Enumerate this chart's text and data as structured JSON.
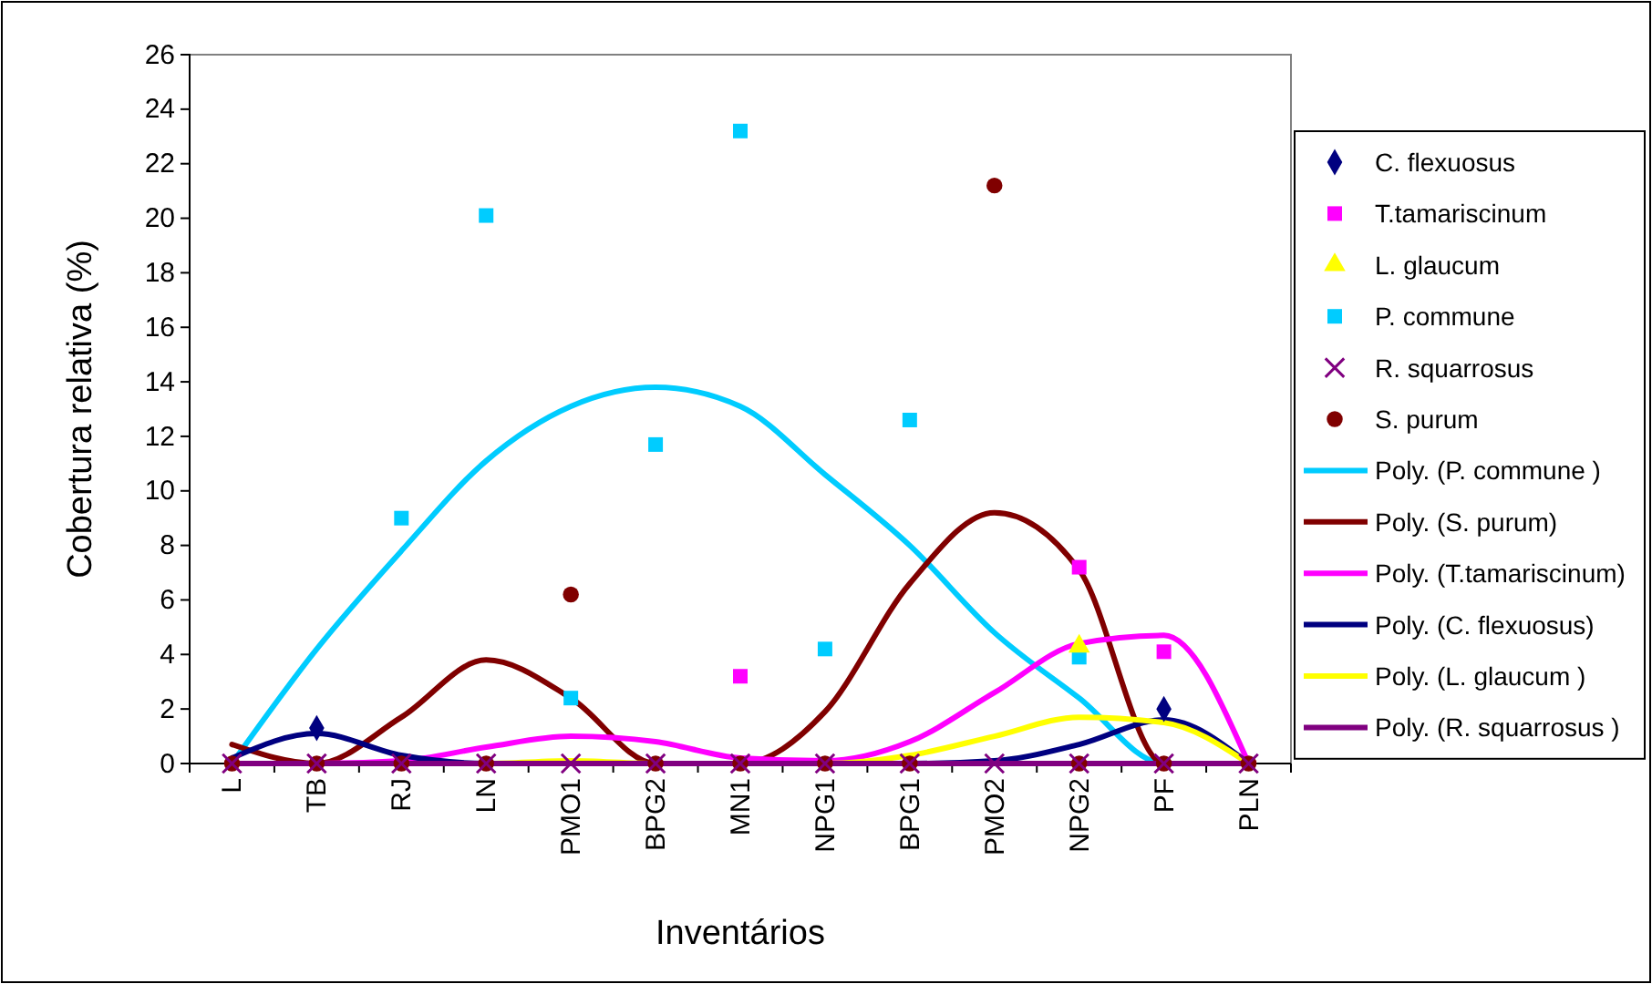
{
  "chart_data": {
    "type": "scatter",
    "xlabel": "Inventários",
    "ylabel": "Cobertura relativa (%)",
    "categories": [
      "L",
      "TB",
      "RJ",
      "LN",
      "PMO1",
      "BPG2",
      "MN1",
      "NPG1",
      "BPG1",
      "PMO2",
      "NPG2",
      "PF",
      "PLN"
    ],
    "ylim": [
      0,
      26
    ],
    "yticks": [
      0,
      2,
      4,
      6,
      8,
      10,
      12,
      14,
      16,
      18,
      20,
      22,
      24,
      26
    ],
    "grid": false,
    "legend": "right",
    "series": [
      {
        "name": "C. flexuosus",
        "marker": "diamond",
        "color": "#000080",
        "values": [
          null,
          1.3,
          null,
          null,
          null,
          null,
          null,
          null,
          null,
          null,
          null,
          2.0,
          null
        ]
      },
      {
        "name": "T.tamariscinum",
        "marker": "square",
        "color": "#ff00ff",
        "values": [
          null,
          null,
          null,
          null,
          null,
          null,
          3.2,
          null,
          null,
          null,
          7.2,
          4.1,
          null
        ]
      },
      {
        "name": "L. glaucum",
        "marker": "triangle",
        "color": "#ffff00",
        "values": [
          null,
          null,
          null,
          null,
          null,
          null,
          null,
          null,
          null,
          null,
          4.3,
          null,
          null
        ]
      },
      {
        "name": "P. commune",
        "marker": "square",
        "color": "#00ccff",
        "values": [
          null,
          null,
          9.0,
          20.1,
          2.4,
          11.7,
          23.2,
          4.2,
          12.6,
          null,
          3.9,
          null,
          null
        ]
      },
      {
        "name": "R. squarrosus",
        "marker": "cross",
        "color": "#800080",
        "values": [
          0,
          0,
          0,
          0,
          0,
          0,
          0,
          0,
          0,
          0,
          0,
          0,
          0
        ]
      },
      {
        "name": "S. purum",
        "marker": "circle",
        "color": "#800000",
        "values": [
          0,
          0,
          0,
          0,
          6.2,
          0,
          0,
          0,
          0,
          21.2,
          0,
          0,
          0
        ]
      },
      {
        "name": "Poly. (P. commune )",
        "type": "line",
        "marker": "none",
        "color": "#00ccff",
        "values": [
          0,
          4.2,
          7.8,
          11.1,
          13.1,
          13.8,
          13.1,
          10.6,
          8.0,
          4.8,
          2.4,
          0,
          0
        ]
      },
      {
        "name": "Poly. (S. purum)",
        "type": "line",
        "marker": "none",
        "color": "#800000",
        "values": [
          0.7,
          0,
          1.7,
          3.8,
          2.4,
          0,
          0,
          1.9,
          6.6,
          9.2,
          7.1,
          0,
          0
        ]
      },
      {
        "name": "Poly. (T.tamariscinum)",
        "type": "line",
        "marker": "none",
        "color": "#ff00ff",
        "values": [
          0,
          0,
          0.1,
          0.6,
          1.0,
          0.8,
          0.2,
          0.1,
          0.8,
          2.6,
          4.4,
          4.7,
          0
        ]
      },
      {
        "name": "Poly. (C. flexuosus)",
        "type": "line",
        "marker": "none",
        "color": "#000080",
        "values": [
          0.2,
          1.1,
          0.3,
          0,
          0,
          0,
          0,
          0,
          0,
          0.1,
          0.7,
          1.6,
          0
        ]
      },
      {
        "name": "Poly. (L. glaucum )",
        "type": "line",
        "marker": "none",
        "color": "#ffff00",
        "values": [
          null,
          null,
          0,
          0,
          0.1,
          0,
          0,
          0,
          0.3,
          1.0,
          1.7,
          1.5,
          0
        ]
      },
      {
        "name": "Poly. (R. squarrosus )",
        "type": "line",
        "marker": "none",
        "color": "#800080",
        "values": [
          0,
          0,
          0,
          0,
          0,
          0,
          0,
          0,
          0,
          0,
          0,
          0,
          0
        ]
      }
    ]
  }
}
